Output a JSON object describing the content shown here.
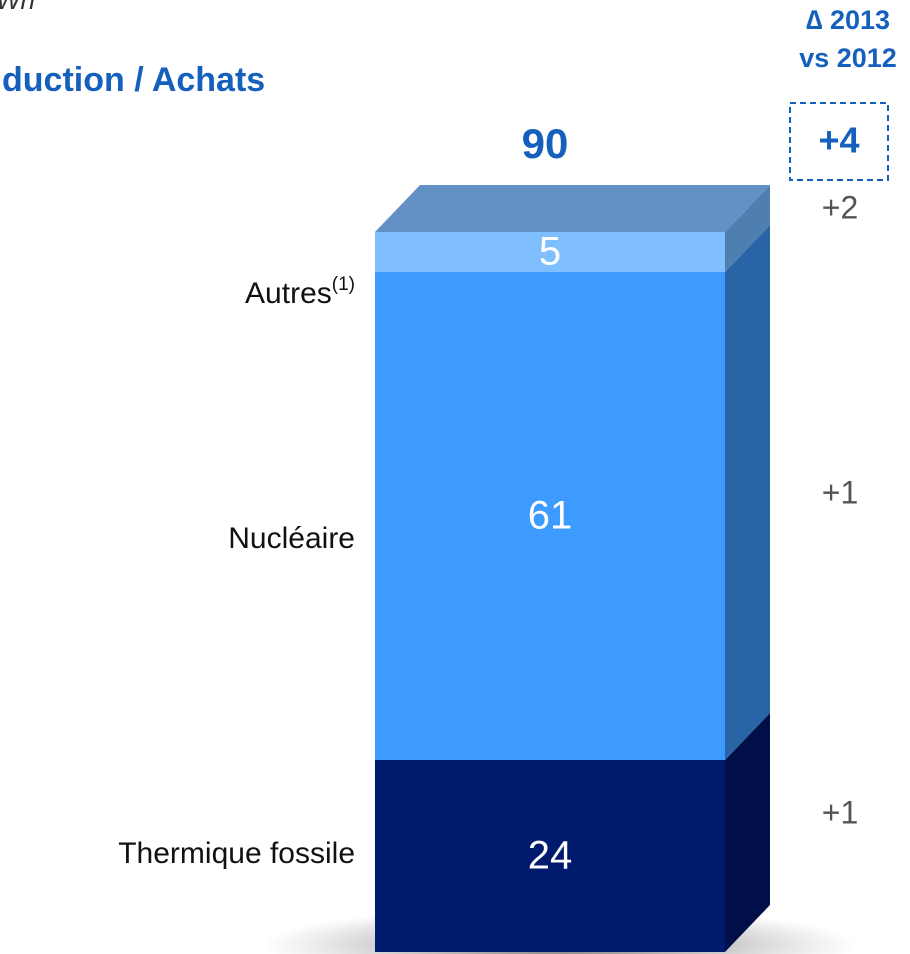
{
  "chart_data": {
    "type": "stacked_bar_3d",
    "unit": "Wh",
    "title": "duction / Achats",
    "total": 90,
    "series": [
      {
        "name": "Thermique fossile",
        "color": "#001a6e",
        "side_color": "#000f48",
        "values": [
          24
        ]
      },
      {
        "name": "Nucléaire",
        "color": "#3d9bff",
        "side_color": "#2864a6",
        "values": [
          61
        ]
      },
      {
        "name": "Autres",
        "note": "(1)",
        "color": "#80bfff",
        "side_color": "#4e7fae",
        "values": [
          5
        ]
      }
    ],
    "top_color": "#6391c6",
    "delta_title": [
      "∆ 2013",
      "vs 2012"
    ],
    "deltas": {
      "values": [
        1,
        1,
        2
      ],
      "value_labels": [
        "+1",
        "+1",
        "+2"
      ]
    },
    "total_delta": {
      "value": 4,
      "label": "+4"
    }
  }
}
